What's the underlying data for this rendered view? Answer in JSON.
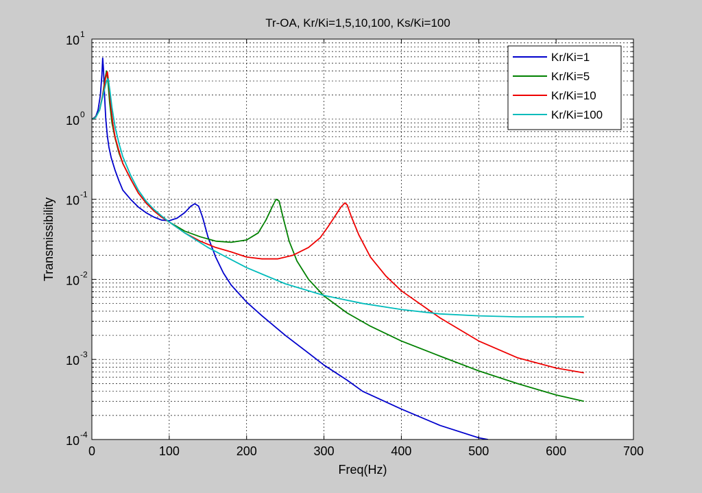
{
  "chart_data": {
    "type": "line",
    "title": "Tr-OA, Kr/Ki=1,5,10,100, Ks/Ki=100",
    "xlabel": "Freq(Hz)",
    "ylabel": "Transmissibility",
    "xlim": [
      0,
      700
    ],
    "ylim": [
      0.0001,
      10
    ],
    "yscale": "log",
    "grid": "on",
    "legend_position": "top-right",
    "x_ticks": [
      {
        "label": "0",
        "v": 0
      },
      {
        "label": "100",
        "v": 100
      },
      {
        "label": "200",
        "v": 200
      },
      {
        "label": "300",
        "v": 300
      },
      {
        "label": "400",
        "v": 400
      },
      {
        "label": "500",
        "v": 500
      },
      {
        "label": "600",
        "v": 600
      },
      {
        "label": "700",
        "v": 700
      }
    ],
    "y_ticks": [
      {
        "base": "10",
        "exp": "1",
        "v": 10
      },
      {
        "base": "10",
        "exp": "0",
        "v": 1
      },
      {
        "base": "10",
        "exp": "-1",
        "v": 0.1
      },
      {
        "base": "10",
        "exp": "-2",
        "v": 0.01
      },
      {
        "base": "10",
        "exp": "-3",
        "v": 0.001
      },
      {
        "base": "10",
        "exp": "-4",
        "v": 0.0001
      }
    ],
    "series": [
      {
        "name": "Kr/Ki=1",
        "color": "#0000cc",
        "x": [
          0,
          5,
          8,
          11,
          13,
          14,
          15,
          16.5,
          18,
          20,
          22,
          25,
          30,
          35,
          40,
          50,
          60,
          70,
          80,
          90,
          100,
          110,
          120,
          128,
          133,
          138,
          143,
          150,
          160,
          170,
          180,
          200,
          220,
          250,
          280,
          300,
          330,
          350,
          400,
          450,
          500,
          512
        ],
        "y": [
          1.0,
          1.08,
          1.3,
          2.0,
          3.6,
          5.8,
          4.2,
          1.9,
          1.0,
          0.62,
          0.45,
          0.33,
          0.23,
          0.17,
          0.13,
          0.1,
          0.08,
          0.068,
          0.06,
          0.055,
          0.054,
          0.058,
          0.068,
          0.082,
          0.088,
          0.082,
          0.06,
          0.034,
          0.019,
          0.012,
          0.0085,
          0.0052,
          0.0035,
          0.002,
          0.0012,
          0.00085,
          0.00055,
          0.0004,
          0.00024,
          0.00015,
          0.000105,
          0.0001
        ]
      },
      {
        "name": "Kr/Ki=5",
        "color": "#008000",
        "x": [
          0,
          5,
          10,
          14,
          17,
          19,
          21,
          23,
          26,
          30,
          35,
          40,
          50,
          60,
          70,
          80,
          90,
          100,
          120,
          140,
          160,
          180,
          200,
          215,
          225,
          233,
          238,
          242,
          247,
          255,
          265,
          280,
          300,
          330,
          360,
          400,
          450,
          500,
          550,
          600,
          636
        ],
        "y": [
          1.0,
          1.06,
          1.3,
          2.0,
          3.2,
          4.0,
          2.8,
          1.6,
          0.9,
          0.58,
          0.38,
          0.28,
          0.18,
          0.12,
          0.09,
          0.072,
          0.06,
          0.052,
          0.04,
          0.034,
          0.03,
          0.029,
          0.031,
          0.038,
          0.055,
          0.08,
          0.1,
          0.095,
          0.06,
          0.03,
          0.017,
          0.01,
          0.0062,
          0.0038,
          0.0026,
          0.0017,
          0.0011,
          0.00072,
          0.0005,
          0.00036,
          0.0003
        ]
      },
      {
        "name": "Kr/Ki=10",
        "color": "#ee0000",
        "x": [
          0,
          5,
          10,
          15,
          18,
          20,
          22,
          24,
          27,
          30,
          35,
          40,
          50,
          60,
          70,
          80,
          90,
          100,
          120,
          140,
          160,
          180,
          200,
          220,
          240,
          260,
          280,
          295,
          305,
          315,
          322,
          327,
          330,
          335,
          345,
          360,
          380,
          400,
          450,
          500,
          550,
          600,
          636
        ],
        "y": [
          1.0,
          1.06,
          1.3,
          2.2,
          3.4,
          3.9,
          2.8,
          1.6,
          0.9,
          0.6,
          0.4,
          0.28,
          0.18,
          0.12,
          0.09,
          0.072,
          0.06,
          0.052,
          0.038,
          0.03,
          0.025,
          0.022,
          0.019,
          0.018,
          0.018,
          0.02,
          0.025,
          0.033,
          0.045,
          0.063,
          0.08,
          0.09,
          0.085,
          0.062,
          0.036,
          0.019,
          0.011,
          0.0072,
          0.0033,
          0.0017,
          0.00105,
          0.00078,
          0.00068
        ]
      },
      {
        "name": "Kr/Ki=100",
        "color": "#00bbbb",
        "x": [
          0,
          5,
          10,
          15,
          19,
          21,
          23,
          26,
          30,
          35,
          40,
          50,
          60,
          70,
          80,
          90,
          100,
          120,
          150,
          200,
          250,
          300,
          350,
          400,
          450,
          500,
          550,
          600,
          636
        ],
        "y": [
          1.0,
          1.05,
          1.3,
          2.1,
          3.0,
          3.2,
          2.4,
          1.4,
          0.8,
          0.5,
          0.34,
          0.2,
          0.13,
          0.095,
          0.075,
          0.062,
          0.052,
          0.038,
          0.025,
          0.014,
          0.0088,
          0.0063,
          0.005,
          0.0042,
          0.0037,
          0.0035,
          0.0034,
          0.0034,
          0.0034
        ]
      }
    ]
  }
}
